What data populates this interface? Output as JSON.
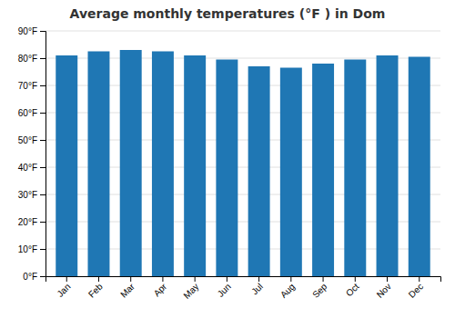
{
  "chart_data": {
    "type": "bar",
    "title": "Average monthly temperatures (°F ) in Dom",
    "categories": [
      "Jan",
      "Feb",
      "Mar",
      "Apr",
      "May",
      "Jun",
      "Jul",
      "Aug",
      "Sep",
      "Oct",
      "Nov",
      "Dec"
    ],
    "values": [
      81,
      82.5,
      83,
      82.5,
      81,
      79.5,
      77,
      76.5,
      78,
      79.5,
      81,
      80.5
    ],
    "ylim": [
      0,
      90
    ],
    "yticks": [
      {
        "value": 0,
        "label": "0°F"
      },
      {
        "value": 10,
        "label": "10°F"
      },
      {
        "value": 20,
        "label": "20°F"
      },
      {
        "value": 30,
        "label": "30°F"
      },
      {
        "value": 40,
        "label": "40°F"
      },
      {
        "value": 50,
        "label": "50°F"
      },
      {
        "value": 60,
        "label": "60°F"
      },
      {
        "value": 70,
        "label": "70°F"
      },
      {
        "value": 80,
        "label": "80°F"
      },
      {
        "value": 90,
        "label": "90°F"
      }
    ],
    "grid": true
  }
}
